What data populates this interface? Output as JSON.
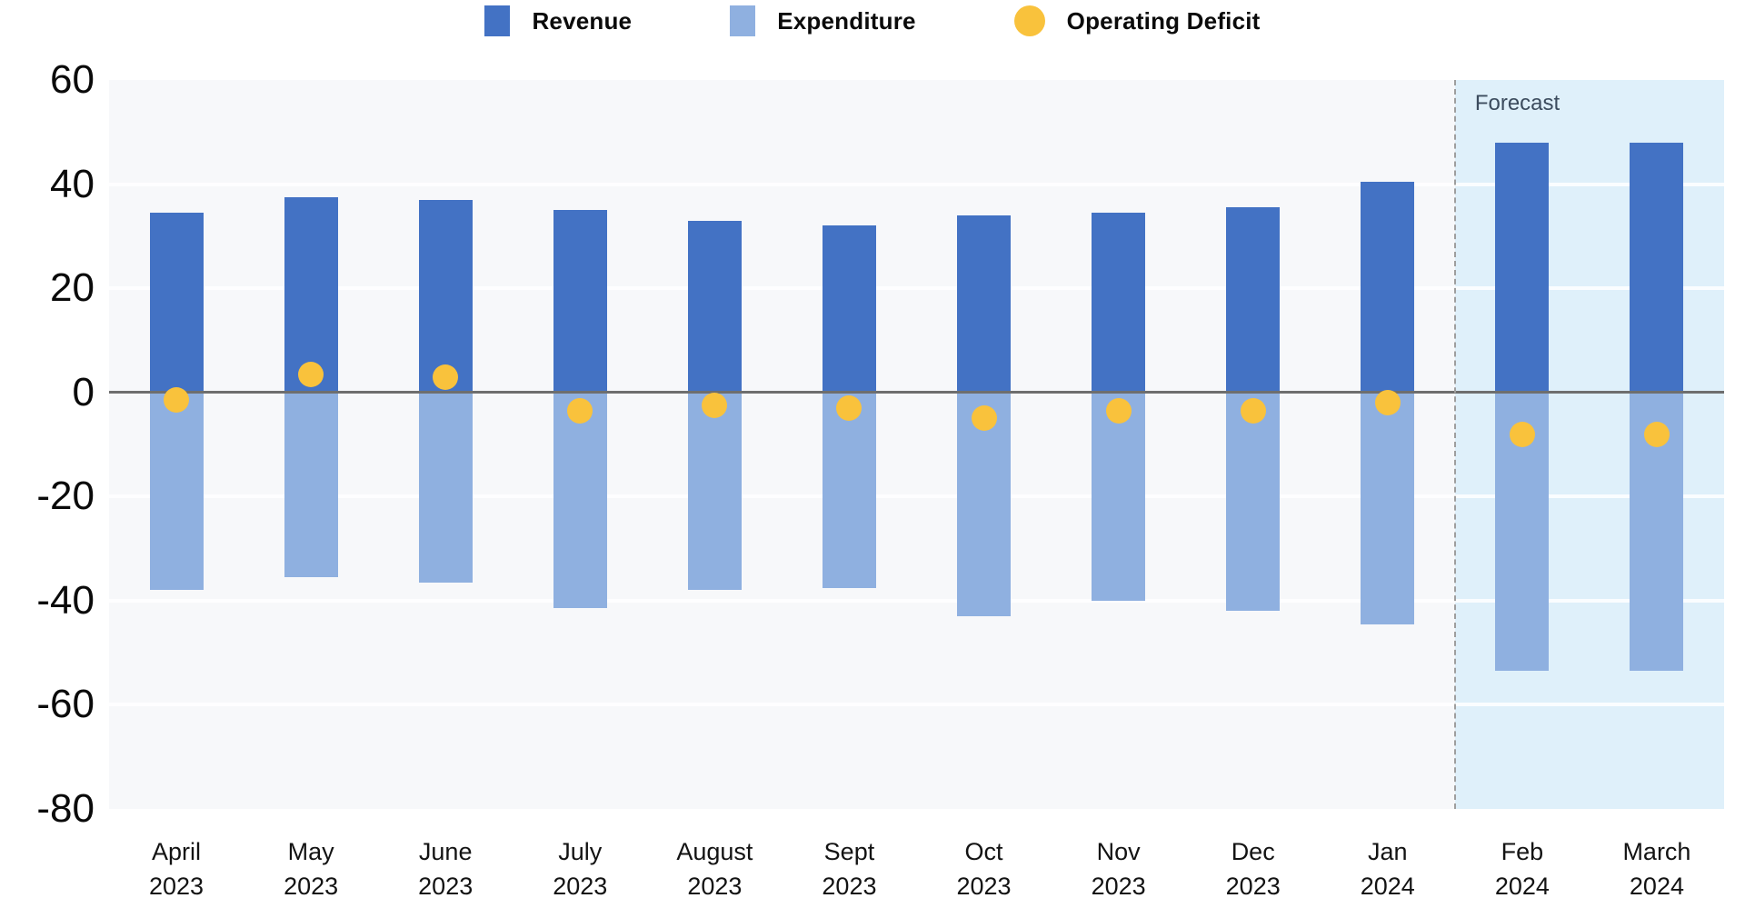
{
  "legend": {
    "items": [
      {
        "label": "Revenue",
        "shape": "square",
        "color": "#4372c4"
      },
      {
        "label": "Expenditure",
        "shape": "square",
        "color": "#8fb0e0"
      },
      {
        "label": "Operating Deficit",
        "shape": "circle",
        "color": "#f9c23c"
      }
    ]
  },
  "forecast": {
    "label": "Forecast",
    "start_index": 10
  },
  "colors": {
    "revenue": "#4372c4",
    "expenditure": "#8fb0e0",
    "deficit_dot": "#f9c23c",
    "plot_background": "#f7f8fa",
    "forecast_background": "#dff0fa",
    "gridline": "#ffffff",
    "zero_line": "#6e6e6e",
    "divider_dashed": "#9e9e9e",
    "axis_text": "#0a0a0a",
    "forecast_text": "#3c4c5e"
  },
  "chart_data": {
    "type": "bar",
    "title": "",
    "xlabel": "",
    "ylabel": "",
    "categories": [
      [
        "April",
        "2023"
      ],
      [
        "May",
        "2023"
      ],
      [
        "June",
        "2023"
      ],
      [
        "July",
        "2023"
      ],
      [
        "August",
        "2023"
      ],
      [
        "Sept",
        "2023"
      ],
      [
        "Oct",
        "2023"
      ],
      [
        "Nov",
        "2023"
      ],
      [
        "Dec",
        "2023"
      ],
      [
        "Jan",
        "2024"
      ],
      [
        "Feb",
        "2024"
      ],
      [
        "March",
        "2024"
      ]
    ],
    "series": [
      {
        "name": "Revenue",
        "type": "bar",
        "color": "#4372c4",
        "values": [
          34.5,
          37.5,
          37,
          35,
          33,
          32,
          34,
          34.5,
          35.5,
          40.5,
          48,
          48
        ]
      },
      {
        "name": "Expenditure",
        "type": "bar",
        "color": "#8fb0e0",
        "values": [
          -38,
          -35.5,
          -36.5,
          -41.5,
          -38,
          -37.5,
          -43,
          -40,
          -42,
          -44.5,
          -53.5,
          -53.5
        ]
      },
      {
        "name": "Operating Deficit",
        "type": "scatter",
        "color": "#f9c23c",
        "values": [
          -1.5,
          3.5,
          3,
          -3.5,
          -2.5,
          -3,
          -5,
          -3.5,
          -3.5,
          -2,
          -8,
          -8
        ]
      }
    ],
    "y_ticks": [
      60,
      40,
      20,
      0,
      -20,
      -40,
      -60,
      -80
    ],
    "ylim": [
      -80,
      60
    ],
    "grid": true,
    "legend_position": "top",
    "annotations": [
      {
        "text": "Forecast",
        "applies_to_categories": [
          "Feb 2024",
          "March 2024"
        ]
      }
    ]
  }
}
